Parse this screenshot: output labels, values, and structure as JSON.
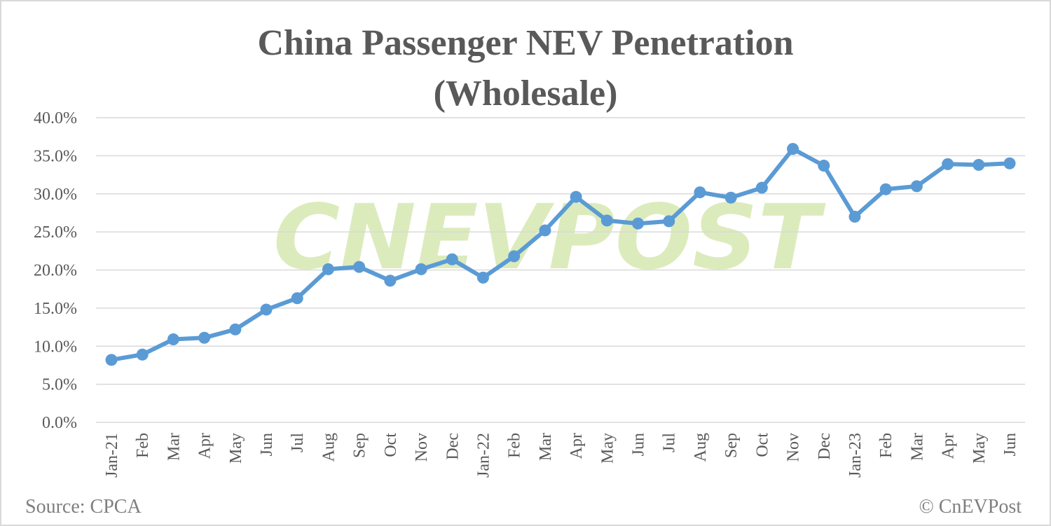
{
  "title_line1": "China Passenger NEV Penetration",
  "title_line2": "(Wholesale)",
  "source": "Source: CPCA",
  "copyright": "© CnEVPost",
  "watermark": "CNEVPOST",
  "colors": {
    "line": "#5b9bd5",
    "grid": "#d9d9d9",
    "text": "#595959",
    "watermark": "#dcebbc"
  },
  "chart_data": {
    "type": "line",
    "title": "China Passenger NEV Penetration (Wholesale)",
    "xlabel": "",
    "ylabel": "",
    "ylim": [
      0,
      40
    ],
    "yticks": [
      "0.0%",
      "5.0%",
      "10.0%",
      "15.0%",
      "20.0%",
      "25.0%",
      "30.0%",
      "35.0%",
      "40.0%"
    ],
    "grid": true,
    "legend": null,
    "categories": [
      "Jan-21",
      "Feb",
      "Mar",
      "Apr",
      "May",
      "Jun",
      "Jul",
      "Aug",
      "Sep",
      "Oct",
      "Nov",
      "Dec",
      "Jan-22",
      "Feb",
      "Mar",
      "Apr",
      "May",
      "Jun",
      "Jul",
      "Aug",
      "Sep",
      "Oct",
      "Nov",
      "Dec",
      "Jan-23",
      "Feb",
      "Mar",
      "Apr",
      "May",
      "Jun"
    ],
    "series": [
      {
        "name": "NEV penetration (wholesale)",
        "values": [
          8.2,
          8.9,
          10.9,
          11.1,
          12.2,
          14.8,
          16.3,
          20.1,
          20.4,
          18.6,
          20.1,
          21.4,
          19.0,
          21.8,
          25.2,
          29.6,
          26.5,
          26.1,
          26.4,
          30.2,
          29.5,
          30.8,
          35.9,
          33.7,
          27.0,
          30.6,
          31.0,
          33.9,
          33.8,
          34.0
        ]
      }
    ]
  }
}
